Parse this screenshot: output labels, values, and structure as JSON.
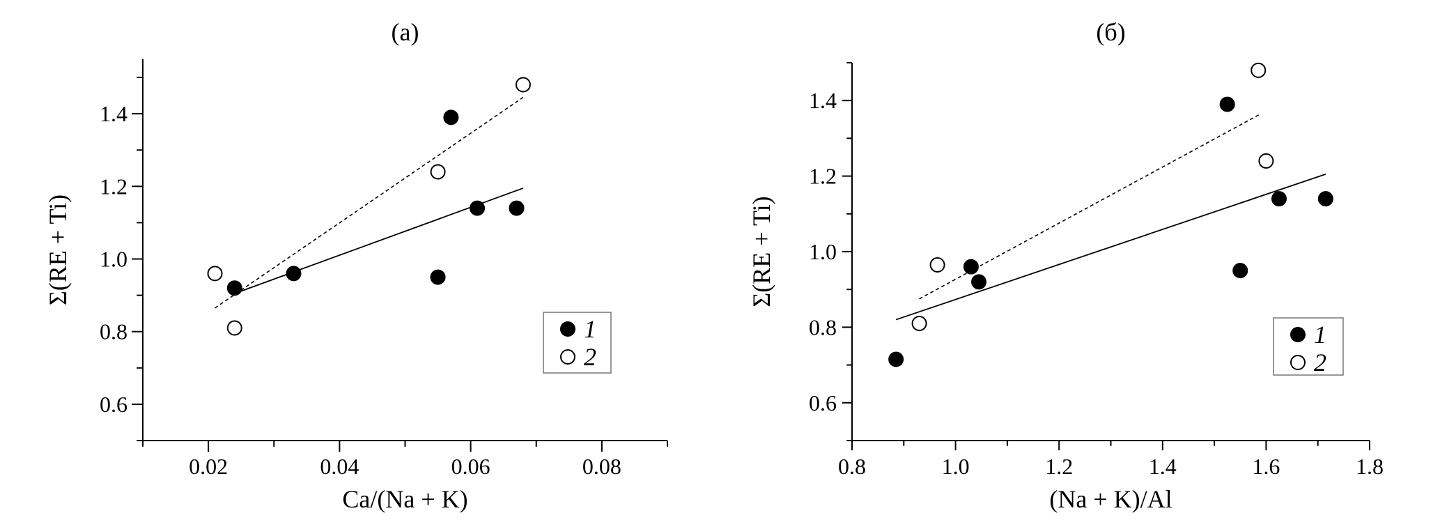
{
  "chart_data": [
    {
      "type": "scatter",
      "title": "(a)",
      "xlabel": "Ca/(Na + K)",
      "ylabel": "Σ(RE + Ti)",
      "xlim": [
        0.01,
        0.09
      ],
      "ylim": [
        0.5,
        1.55
      ],
      "x_ticks": [
        0.02,
        0.04,
        0.06,
        0.08
      ],
      "x_tick_labels": [
        "0.02",
        "0.04",
        "0.06",
        "0.08"
      ],
      "y_ticks": [
        0.6,
        0.8,
        1.0,
        1.2,
        1.4
      ],
      "y_tick_labels": [
        "0.6",
        "0.8",
        "1.0",
        "1.2",
        "1.4"
      ],
      "grid": false,
      "legend_position": "bottom-right",
      "series": [
        {
          "name": "1",
          "marker": "filled-circle",
          "color": "#000000",
          "points": [
            [
              0.024,
              0.92
            ],
            [
              0.033,
              0.96
            ],
            [
              0.055,
              0.95
            ],
            [
              0.057,
              1.39
            ],
            [
              0.061,
              1.14
            ],
            [
              0.067,
              1.14
            ]
          ],
          "trend": {
            "style": "solid",
            "from": [
              0.024,
              0.905
            ],
            "to": [
              0.068,
              1.195
            ]
          }
        },
        {
          "name": "2",
          "marker": "open-circle",
          "color": "#000000",
          "points": [
            [
              0.021,
              0.96
            ],
            [
              0.024,
              0.81
            ],
            [
              0.055,
              1.24
            ],
            [
              0.068,
              1.48
            ]
          ],
          "trend": {
            "style": "dashed",
            "from": [
              0.021,
              0.865
            ],
            "to": [
              0.068,
              1.445
            ]
          }
        }
      ]
    },
    {
      "type": "scatter",
      "title": "(б)",
      "xlabel": "(Na + K)/Al",
      "ylabel": "Σ(RE + Ti)",
      "xlim": [
        0.8,
        1.8
      ],
      "ylim": [
        0.5,
        1.5
      ],
      "x_ticks": [
        0.8,
        1.0,
        1.2,
        1.4,
        1.6,
        1.8
      ],
      "x_tick_labels": [
        "0.8",
        "1.0",
        "1.2",
        "1.4",
        "1.6",
        "1.8"
      ],
      "y_ticks": [
        0.6,
        0.8,
        1.0,
        1.2,
        1.4
      ],
      "y_tick_labels": [
        "0.6",
        "0.8",
        "1.0",
        "1.2",
        "1.4"
      ],
      "grid": false,
      "legend_position": "bottom-right",
      "series": [
        {
          "name": "1",
          "marker": "filled-circle",
          "color": "#000000",
          "points": [
            [
              0.885,
              0.715
            ],
            [
              1.03,
              0.96
            ],
            [
              1.045,
              0.92
            ],
            [
              1.525,
              1.39
            ],
            [
              1.55,
              0.95
            ],
            [
              1.625,
              1.14
            ],
            [
              1.715,
              1.14
            ]
          ],
          "trend": {
            "style": "solid",
            "from": [
              0.885,
              0.82
            ],
            "to": [
              1.715,
              1.205
            ]
          }
        },
        {
          "name": "2",
          "marker": "open-circle",
          "color": "#000000",
          "points": [
            [
              0.93,
              0.81
            ],
            [
              0.965,
              0.965
            ],
            [
              1.585,
              1.48
            ],
            [
              1.6,
              1.24
            ]
          ],
          "trend": {
            "style": "dashed",
            "from": [
              0.93,
              0.875
            ],
            "to": [
              1.59,
              1.365
            ]
          }
        }
      ]
    }
  ]
}
